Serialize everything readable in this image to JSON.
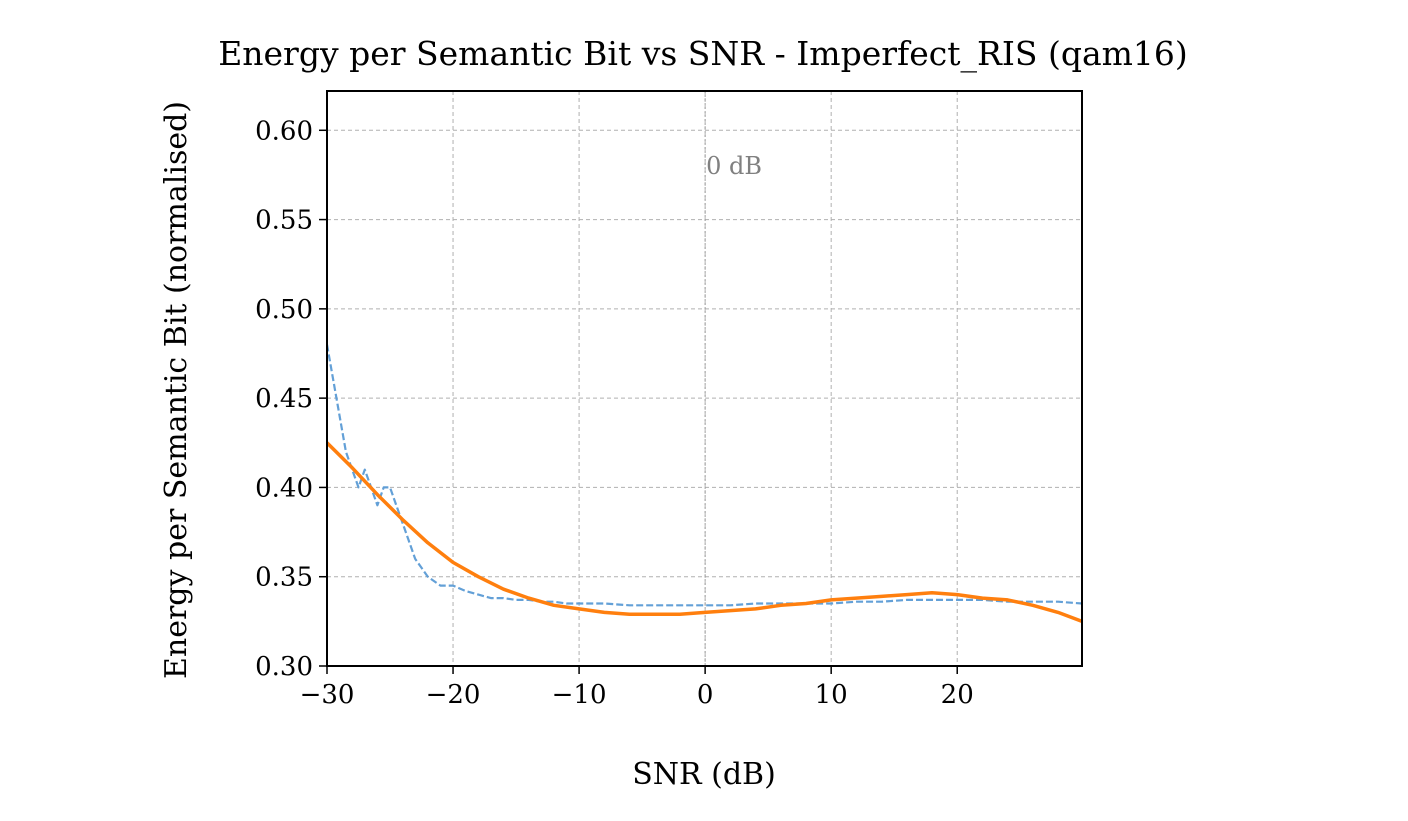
{
  "chart_data": {
    "type": "line",
    "title": "Energy per Semantic Bit vs SNR - Imperfect_RIS (qam16)",
    "xlabel": "SNR (dB)",
    "ylabel": "Energy per Semantic Bit (normalised)",
    "xlim": [
      -30,
      29.9
    ],
    "ylim": [
      0.3,
      0.622
    ],
    "xticks": [
      -30,
      -20,
      -10,
      0,
      10,
      20
    ],
    "xtick_labels": [
      "−30",
      "−20",
      "−10",
      "0",
      "10",
      "20"
    ],
    "yticks": [
      0.3,
      0.35,
      0.4,
      0.45,
      0.5,
      0.55,
      0.6
    ],
    "ytick_labels": [
      "0.30",
      "0.35",
      "0.40",
      "0.45",
      "0.50",
      "0.55",
      "0.60"
    ],
    "grid": true,
    "annotations": [
      {
        "text": "0 dB",
        "x": 0,
        "y": 0.58,
        "line_at_x": 0
      }
    ],
    "series": [
      {
        "style": "dashed",
        "color": "#5b9bd5",
        "x": [
          -30,
          -29.5,
          -29,
          -28.5,
          -28,
          -27.5,
          -27,
          -26.5,
          -26,
          -25.5,
          -25,
          -24.5,
          -24,
          -23.5,
          -23,
          -22.5,
          -22,
          -21,
          -20,
          -19,
          -18,
          -17,
          -16,
          -15,
          -14,
          -13,
          -12,
          -11,
          -10,
          -8,
          -6,
          -4,
          -2,
          0,
          2,
          4,
          6,
          8,
          10,
          12,
          14,
          16,
          18,
          20,
          22,
          24,
          26,
          28,
          29.9
        ],
        "y": [
          0.48,
          0.46,
          0.44,
          0.42,
          0.41,
          0.4,
          0.41,
          0.4,
          0.39,
          0.4,
          0.4,
          0.39,
          0.38,
          0.37,
          0.36,
          0.355,
          0.35,
          0.345,
          0.345,
          0.342,
          0.34,
          0.338,
          0.338,
          0.337,
          0.337,
          0.336,
          0.336,
          0.335,
          0.335,
          0.335,
          0.334,
          0.334,
          0.334,
          0.334,
          0.334,
          0.335,
          0.335,
          0.335,
          0.335,
          0.336,
          0.336,
          0.337,
          0.337,
          0.337,
          0.337,
          0.336,
          0.336,
          0.336,
          0.335
        ]
      },
      {
        "style": "solid",
        "color": "#ff7f0e",
        "x": [
          -30,
          -28,
          -26,
          -24,
          -22,
          -20,
          -18,
          -16,
          -14,
          -12,
          -10,
          -8,
          -6,
          -4,
          -2,
          0,
          2,
          4,
          6,
          8,
          10,
          12,
          14,
          16,
          18,
          20,
          22,
          24,
          26,
          28,
          29.9
        ],
        "y": [
          0.425,
          0.411,
          0.396,
          0.382,
          0.369,
          0.358,
          0.35,
          0.343,
          0.338,
          0.334,
          0.332,
          0.33,
          0.329,
          0.329,
          0.329,
          0.33,
          0.331,
          0.332,
          0.334,
          0.335,
          0.337,
          0.338,
          0.339,
          0.34,
          0.341,
          0.34,
          0.338,
          0.337,
          0.334,
          0.33,
          0.325
        ]
      }
    ]
  }
}
